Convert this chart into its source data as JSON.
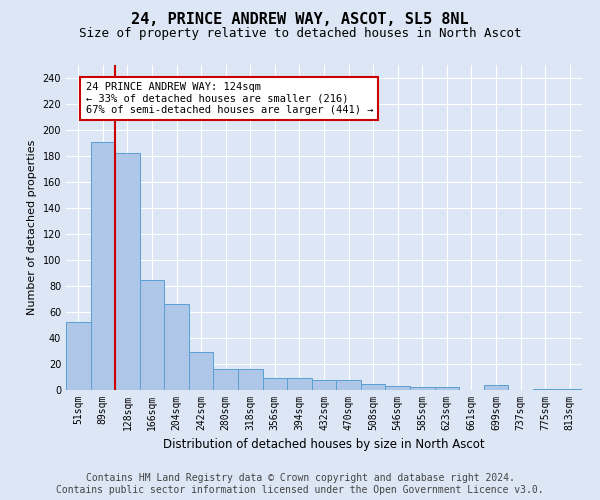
{
  "title": "24, PRINCE ANDREW WAY, ASCOT, SL5 8NL",
  "subtitle": "Size of property relative to detached houses in North Ascot",
  "xlabel": "Distribution of detached houses by size in North Ascot",
  "ylabel": "Number of detached properties",
  "categories": [
    "51sqm",
    "89sqm",
    "128sqm",
    "166sqm",
    "204sqm",
    "242sqm",
    "280sqm",
    "318sqm",
    "356sqm",
    "394sqm",
    "432sqm",
    "470sqm",
    "508sqm",
    "546sqm",
    "585sqm",
    "623sqm",
    "661sqm",
    "699sqm",
    "737sqm",
    "775sqm",
    "813sqm"
  ],
  "values": [
    52,
    191,
    182,
    85,
    66,
    29,
    16,
    16,
    9,
    9,
    8,
    8,
    5,
    3,
    2,
    2,
    0,
    4,
    0,
    1,
    1
  ],
  "bar_color": "#aec6e8",
  "bar_edge_color": "#5a9fd4",
  "property_line_x": 1.5,
  "property_line_color": "#cc0000",
  "annotation_text": "24 PRINCE ANDREW WAY: 124sqm\n← 33% of detached houses are smaller (216)\n67% of semi-detached houses are larger (441) →",
  "annotation_box_color": "#ffffff",
  "annotation_box_edge_color": "#cc0000",
  "ylim": [
    0,
    250
  ],
  "yticks": [
    0,
    20,
    40,
    60,
    80,
    100,
    120,
    140,
    160,
    180,
    200,
    220,
    240
  ],
  "footer_line1": "Contains HM Land Registry data © Crown copyright and database right 2024.",
  "footer_line2": "Contains public sector information licensed under the Open Government Licence v3.0.",
  "bg_color": "#dce6f5",
  "plot_bg_color": "#dce6f5",
  "title_fontsize": 11,
  "subtitle_fontsize": 9,
  "footer_fontsize": 7,
  "annotation_fontsize": 7.5,
  "ylabel_fontsize": 8,
  "xlabel_fontsize": 8.5,
  "tick_fontsize": 7
}
